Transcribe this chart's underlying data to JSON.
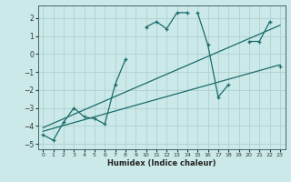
{
  "xlabel": "Humidex (Indice chaleur)",
  "xlim": [
    -0.5,
    23.5
  ],
  "ylim": [
    -5.3,
    2.7
  ],
  "yticks": [
    -5,
    -4,
    -3,
    -2,
    -1,
    0,
    1,
    2
  ],
  "xticks": [
    0,
    1,
    2,
    3,
    4,
    5,
    6,
    7,
    8,
    9,
    10,
    11,
    12,
    13,
    14,
    15,
    16,
    17,
    18,
    19,
    20,
    21,
    22,
    23
  ],
  "bg_color": "#cce9e9",
  "line_color": "#1a6b6b",
  "grid_color": "#b0d0d0",
  "line1_y": [
    -4.5,
    -4.8,
    -3.8,
    -3.0,
    -3.5,
    -3.6,
    -3.9,
    -1.7,
    -0.3,
    null,
    1.5,
    1.8,
    1.4,
    2.3,
    2.3,
    null,
    null,
    null,
    null,
    null,
    0.7,
    0.7,
    1.8,
    null
  ],
  "line2_y": [
    null,
    null,
    null,
    null,
    null,
    null,
    null,
    null,
    null,
    null,
    null,
    null,
    null,
    null,
    null,
    2.3,
    0.5,
    -2.4,
    -1.7,
    null,
    null,
    null,
    null,
    -0.7
  ],
  "straight1": [
    -4.3,
    -0.6
  ],
  "straight2": [
    -4.1,
    1.6
  ],
  "all_markers": [
    -4.5,
    -4.8,
    -3.8,
    -3.0,
    -3.5,
    -3.6,
    -3.9,
    -1.7,
    -0.3,
    null,
    1.5,
    1.8,
    1.4,
    2.3,
    2.3,
    2.3,
    0.5,
    -2.4,
    -1.7,
    null,
    0.7,
    0.7,
    1.8,
    -0.7
  ]
}
